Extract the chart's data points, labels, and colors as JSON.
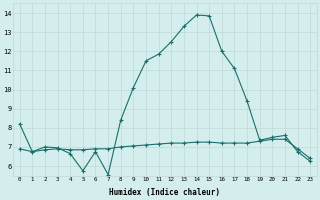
{
  "xlabel": "Humidex (Indice chaleur)",
  "background_color": "#d4eeee",
  "grid_color": "#c0d8d8",
  "line_color": "#1a6e6a",
  "xlim": [
    -0.5,
    23.5
  ],
  "ylim": [
    5.5,
    14.5
  ],
  "yticks": [
    6,
    7,
    8,
    9,
    10,
    11,
    12,
    13,
    14
  ],
  "xticks": [
    0,
    1,
    2,
    3,
    4,
    5,
    6,
    7,
    8,
    9,
    10,
    11,
    12,
    13,
    14,
    15,
    16,
    17,
    18,
    19,
    20,
    21,
    22,
    23
  ],
  "series1_x": [
    0,
    1,
    2,
    3,
    4,
    5,
    6,
    7,
    8,
    9,
    10,
    11,
    12,
    13,
    14,
    15,
    16,
    17,
    18,
    19,
    20,
    21,
    22,
    23
  ],
  "series1_y": [
    8.2,
    6.75,
    7.0,
    6.95,
    6.65,
    5.75,
    6.75,
    5.55,
    8.4,
    10.1,
    11.5,
    11.85,
    12.5,
    13.3,
    13.9,
    13.85,
    12.0,
    11.1,
    9.4,
    7.35,
    7.5,
    7.6,
    6.75,
    6.25
  ],
  "series2_x": [
    0,
    1,
    2,
    3,
    4,
    5,
    6,
    7,
    8,
    9,
    10,
    11,
    12,
    13,
    14,
    15,
    16,
    17,
    18,
    19,
    20,
    21,
    22,
    23
  ],
  "series2_y": [
    6.9,
    6.75,
    6.85,
    6.9,
    6.85,
    6.85,
    6.9,
    6.9,
    7.0,
    7.05,
    7.1,
    7.15,
    7.2,
    7.2,
    7.25,
    7.25,
    7.2,
    7.2,
    7.2,
    7.3,
    7.4,
    7.4,
    6.9,
    6.4
  ]
}
